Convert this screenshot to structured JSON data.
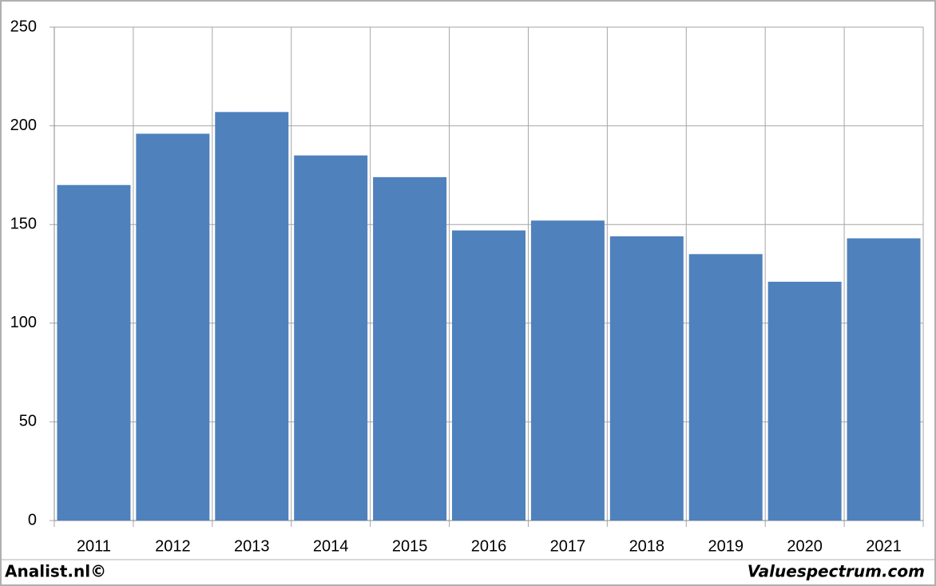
{
  "chart_data": {
    "type": "bar",
    "categories": [
      "2011",
      "2012",
      "2013",
      "2014",
      "2015",
      "2016",
      "2017",
      "2018",
      "2019",
      "2020",
      "2021"
    ],
    "values": [
      170,
      196,
      207,
      185,
      174,
      147,
      152,
      144,
      135,
      121,
      143
    ],
    "color": "#4f81bd",
    "ylim": [
      0,
      250
    ],
    "yticks": [
      0,
      50,
      100,
      150,
      200,
      250
    ],
    "grid": true
  },
  "footer": {
    "left": "Analist.nl©",
    "right": "Valuespectrum.com"
  }
}
